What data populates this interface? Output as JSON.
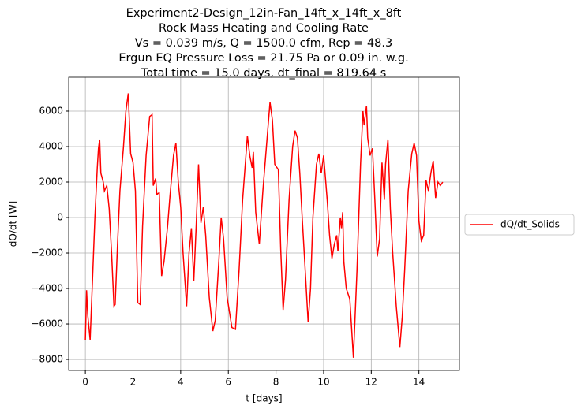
{
  "chart_data": {
    "type": "line",
    "title": [
      "Experiment2-Design_12in-Fan_14ft_x_14ft_x_8ft",
      "Rock Mass Heating and Cooling Rate",
      "Vs = 0.039 m/s, Q = 1500.0 cfm, Rep = 48.3",
      "Ergun EQ Pressure Loss = 21.75 Pa or 0.09 in. w.g.",
      "Total time = 15.0 days, dt_final = 819.64 s"
    ],
    "x_label": "t [days]",
    "y_label": "dQ/dt [W]",
    "x": [
      0,
      0.05,
      0.1,
      0.2,
      0.3,
      0.4,
      0.5,
      0.55,
      0.6,
      0.65,
      0.75,
      0.8,
      0.9,
      1.0,
      1.1,
      1.2,
      1.25,
      1.35,
      1.45,
      1.6,
      1.7,
      1.8,
      1.9,
      2.0,
      2.1,
      2.2,
      2.3,
      2.4,
      2.55,
      2.7,
      2.8,
      2.85,
      2.95,
      3.0,
      3.1,
      3.2,
      3.3,
      3.45,
      3.55,
      3.7,
      3.8,
      3.9,
      4.0,
      4.1,
      4.25,
      4.35,
      4.45,
      4.55,
      4.65,
      4.75,
      4.85,
      4.95,
      5.05,
      5.2,
      5.35,
      5.45,
      5.6,
      5.7,
      5.8,
      5.95,
      6.15,
      6.3,
      6.45,
      6.6,
      6.8,
      6.9,
      7.0,
      7.05,
      7.15,
      7.3,
      7.45,
      7.6,
      7.75,
      7.85,
      7.95,
      8.1,
      8.2,
      8.3,
      8.4,
      8.55,
      8.7,
      8.8,
      8.9,
      9.0,
      9.1,
      9.25,
      9.35,
      9.45,
      9.55,
      9.7,
      9.8,
      9.9,
      10.0,
      10.15,
      10.25,
      10.35,
      10.45,
      10.55,
      10.6,
      10.7,
      10.75,
      10.8,
      10.85,
      10.95,
      11.1,
      11.25,
      11.4,
      11.55,
      11.65,
      11.7,
      11.8,
      11.85,
      11.95,
      12.05,
      12.15,
      12.25,
      12.35,
      12.45,
      12.55,
      12.6,
      12.7,
      12.8,
      12.9,
      13.05,
      13.2,
      13.3,
      13.4,
      13.55,
      13.7,
      13.8,
      13.9,
      14.0,
      14.1,
      14.2,
      14.3,
      14.4,
      14.5,
      14.6,
      14.7,
      14.8,
      14.9,
      15.0
    ],
    "series": [
      {
        "name": "dQ/dt_Solids",
        "color": "#ff0000",
        "values": [
          -6900,
          -4100,
          -5500,
          -6900,
          -3500,
          0,
          2800,
          3900,
          4400,
          2500,
          2000,
          1500,
          1800,
          500,
          -2000,
          -5000,
          -4900,
          -1500,
          1500,
          4000,
          6000,
          7000,
          3600,
          3100,
          1500,
          -4800,
          -4900,
          -500,
          3500,
          5700,
          5800,
          1800,
          2200,
          1300,
          1400,
          -3300,
          -2500,
          -500,
          1200,
          3500,
          4200,
          2000,
          600,
          -2000,
          -5000,
          -2000,
          -600,
          -3600,
          -500,
          3000,
          -300,
          600,
          -1000,
          -4500,
          -6400,
          -5800,
          -2500,
          0,
          -1200,
          -4500,
          -6200,
          -6300,
          -3000,
          1000,
          4600,
          3500,
          2800,
          3700,
          300,
          -1500,
          1500,
          4000,
          6500,
          5500,
          3000,
          2700,
          -1800,
          -5200,
          -3500,
          1000,
          4000,
          4900,
          4500,
          2500,
          0,
          -3500,
          -5900,
          -4000,
          0,
          3000,
          3600,
          2500,
          3500,
          1000,
          -1000,
          -2300,
          -1500,
          -1000,
          -1900,
          0,
          -600,
          300,
          -2500,
          -4000,
          -4600,
          -7900,
          -3000,
          3000,
          6000,
          5200,
          6300,
          4500,
          3500,
          3900,
          1000,
          -2200,
          -1200,
          3100,
          1000,
          3000,
          4400,
          500,
          -2000,
          -5000,
          -7300,
          -5600,
          -3000,
          1500,
          3600,
          4200,
          3500,
          -200,
          -1300,
          -1000,
          2100,
          1500,
          2500,
          3200,
          1100,
          2000,
          1800,
          2000
        ]
      }
    ],
    "xlim": [
      -0.7,
      15.7
    ],
    "ylim": [
      -8620,
      7910
    ],
    "xticks": [
      0,
      2,
      4,
      6,
      8,
      10,
      12,
      14
    ],
    "yticks": [
      {
        "value": -8000,
        "label": "−8000"
      },
      {
        "value": -6000,
        "label": "−6000"
      },
      {
        "value": -4000,
        "label": "−4000"
      },
      {
        "value": -2000,
        "label": "−2000"
      },
      0,
      2000,
      4000,
      6000
    ],
    "grid": true,
    "legend": "outside right"
  }
}
